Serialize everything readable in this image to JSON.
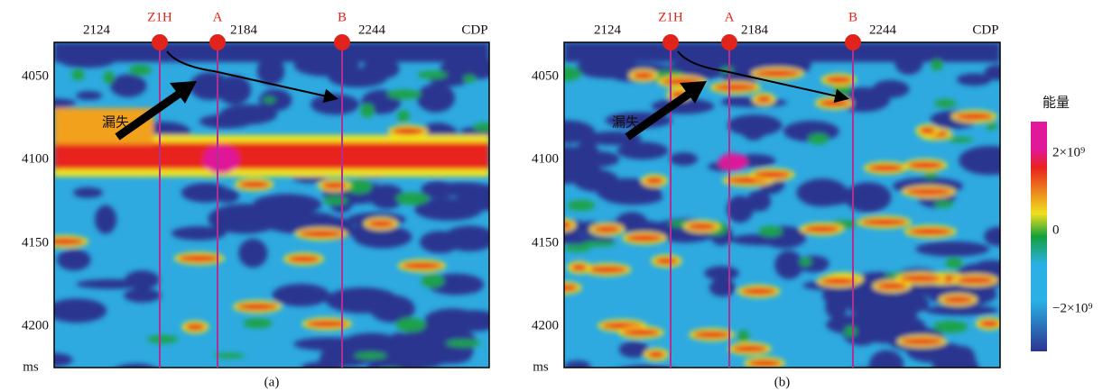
{
  "panels": [
    {
      "caption": "(a)",
      "x_ticks": [
        2124,
        2184,
        2244
      ],
      "x_axis_label": "CDP",
      "y_ticks": [
        4050,
        4100,
        4150,
        4200
      ],
      "y_axis_label": "ms",
      "wells": [
        "Z1H",
        "A",
        "B"
      ],
      "annotation": "漏失"
    },
    {
      "caption": "(b)",
      "x_ticks": [
        2124,
        2184,
        2244
      ],
      "x_axis_label": "CDP",
      "y_ticks": [
        4050,
        4100,
        4150,
        4200
      ],
      "y_axis_label": "ms",
      "wells": [
        "Z1H",
        "A",
        "B"
      ],
      "annotation": "漏失"
    }
  ],
  "colorbar": {
    "title": "能量",
    "labels": [
      "2×10⁹",
      "0",
      "−2×10⁹"
    ]
  }
}
